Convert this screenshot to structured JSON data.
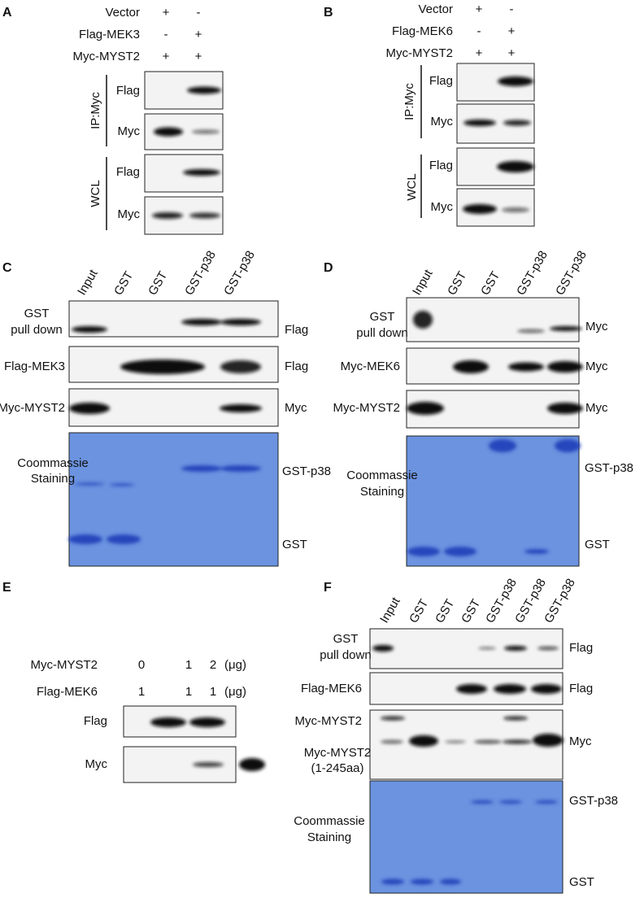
{
  "panels": [
    {
      "letter": "A",
      "conditions": [
        {
          "label": "Vector",
          "lanes": [
            "+",
            "-"
          ]
        },
        {
          "label": "Flag-MEK3",
          "lanes": [
            "-",
            "+"
          ]
        },
        {
          "label": "Myc-MYST2",
          "lanes": [
            "+",
            "+"
          ]
        }
      ],
      "groups": [
        "IP:Myc",
        "WCL"
      ],
      "blots": [
        "Flag",
        "Myc",
        "Flag",
        "Myc"
      ]
    },
    {
      "letter": "B",
      "conditions": [
        {
          "label": "Vector",
          "lanes": [
            "+",
            "-"
          ]
        },
        {
          "label": "Flag-MEK6",
          "lanes": [
            "-",
            "+"
          ]
        },
        {
          "label": "Myc-MYST2",
          "lanes": [
            "+",
            "+"
          ]
        }
      ],
      "groups": [
        "IP:Myc",
        "WCL"
      ],
      "blots": [
        "Flag",
        "Myc",
        "Flag",
        "Myc"
      ]
    },
    {
      "letter": "C",
      "lanes": [
        "Input",
        "GST",
        "GST",
        "GST-p38",
        "GST-p38"
      ],
      "rows": [
        {
          "label": [
            "GST",
            "pull down"
          ],
          "antibody": "Flag"
        },
        {
          "label": [
            "Flag-MEK3"
          ],
          "antibody": "Flag"
        },
        {
          "label": [
            "Myc-MYST2"
          ],
          "antibody": "Myc"
        },
        {
          "label": [
            "Coommassie",
            "Staining"
          ],
          "markers": [
            "GST-p38",
            "GST"
          ]
        }
      ]
    },
    {
      "letter": "D",
      "lanes": [
        "Input",
        "GST",
        "GST",
        "GST-p38",
        "GST-p38"
      ],
      "rows": [
        {
          "label": [
            "GST",
            "pull down"
          ],
          "antibody": "Myc"
        },
        {
          "label": [
            "Myc-MEK6"
          ],
          "antibody": "Myc"
        },
        {
          "label": [
            "Myc-MYST2"
          ],
          "antibody": "Myc"
        },
        {
          "label": [
            "Coommassie",
            "Staining"
          ],
          "markers": [
            "GST-p38",
            "GST"
          ]
        }
      ]
    },
    {
      "letter": "E",
      "conditions": [
        {
          "label": "Myc-MYST2",
          "lanes": [
            "0",
            "1",
            "2"
          ],
          "unit": "(μg)"
        },
        {
          "label": "Flag-MEK6",
          "lanes": [
            "1",
            "1",
            "1"
          ],
          "unit": "(μg)"
        }
      ],
      "blots": [
        "Flag",
        "Myc"
      ]
    },
    {
      "letter": "F",
      "lanes": [
        "Input",
        "GST",
        "GST",
        "GST",
        "GST-p38",
        "GST-p38",
        "GST-p38"
      ],
      "rows": [
        {
          "label": [
            "GST",
            "pull down"
          ],
          "antibody": "Flag"
        },
        {
          "label": [
            "Flag-MEK6"
          ],
          "antibody": "Flag"
        },
        {
          "label": [
            "Myc-MYST2"
          ],
          "sublabel": [
            "Myc-MYST2",
            "(1-245aa)"
          ],
          "antibody": "Myc"
        },
        {
          "label": [
            "Coommassie",
            "Staining"
          ],
          "markers": [
            "GST-p38",
            "GST"
          ]
        }
      ]
    }
  ]
}
